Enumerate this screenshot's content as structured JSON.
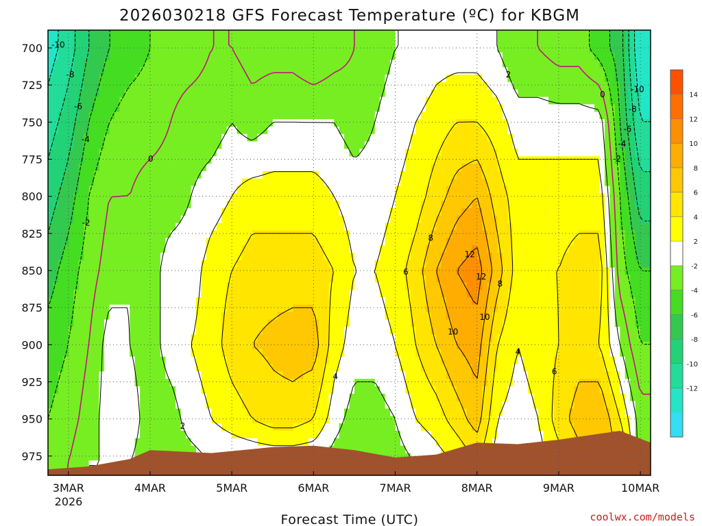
{
  "chart_data": {
    "type": "heatmap",
    "title": "2026030218 GFS Forecast Temperature (ºC) for KBGM",
    "xlabel": "Forecast Time (UTC)",
    "ylabel": "",
    "credit": "coolwx.com/models",
    "x_tick_labels": [
      "3MAR",
      "4MAR",
      "5MAR",
      "6MAR",
      "7MAR",
      "8MAR",
      "9MAR",
      "10MAR"
    ],
    "x_year_label": "2026",
    "x_tick_hours": [
      6,
      30,
      54,
      78,
      102,
      126,
      150,
      174
    ],
    "x_range_hours": [
      0,
      177
    ],
    "y_tick_labels": [
      "700",
      "725",
      "750",
      "775",
      "800",
      "825",
      "850",
      "875",
      "900",
      "925",
      "950",
      "975"
    ],
    "y_levels": [
      700,
      725,
      750,
      775,
      800,
      825,
      850,
      875,
      900,
      925,
      950,
      975
    ],
    "y_range": [
      688,
      988
    ],
    "grid": true,
    "colorbar": {
      "labels": [
        "14",
        "12",
        "10",
        "8",
        "6",
        "4",
        "2",
        "-2",
        "-4",
        "-6",
        "-8",
        "-10",
        "-12"
      ],
      "bounds": [
        -14,
        -12,
        -10,
        -8,
        -6,
        -4,
        -2,
        2,
        4,
        6,
        8,
        10,
        12,
        14,
        16
      ],
      "colors": [
        "#33ddf2",
        "#22e6c6",
        "#22dd99",
        "#22d277",
        "#33c94f",
        "#44dd22",
        "#77ee22",
        "#ffffff",
        "#ffff00",
        "#ffe500",
        "#ffc800",
        "#ffad00",
        "#ff8e00",
        "#ff6f00",
        "#ff5000"
      ]
    },
    "hours": [
      0,
      6,
      12,
      18,
      24,
      30,
      36,
      42,
      48,
      54,
      60,
      66,
      72,
      78,
      84,
      90,
      96,
      102,
      108,
      114,
      120,
      126,
      132,
      138,
      144,
      150,
      156,
      162,
      168,
      174
    ],
    "temp_levels": [
      700,
      750,
      800,
      850,
      900,
      950,
      980
    ],
    "temperatures": [
      [
        -11,
        -9,
        -7,
        -5,
        -3,
        -2,
        -1
      ],
      [
        -9,
        -7,
        -5,
        -3,
        -2,
        -1,
        0
      ],
      [
        -6,
        -4,
        -2,
        -1,
        0,
        1,
        2
      ],
      [
        -4,
        -2,
        0,
        1,
        3,
        3,
        2
      ],
      [
        -3,
        -1,
        0,
        2,
        2,
        3,
        2
      ],
      [
        -2,
        -1,
        1,
        1,
        1,
        1,
        1
      ],
      [
        -1,
        0,
        1,
        3,
        3,
        1,
        1
      ],
      [
        -1,
        1,
        2,
        3,
        4,
        3,
        1
      ],
      [
        0,
        1,
        3,
        5,
        5,
        4,
        2
      ],
      [
        0,
        2,
        4,
        6,
        7,
        5,
        2
      ],
      [
        -1,
        1,
        5,
        7,
        8,
        6,
        2
      ],
      [
        -1,
        2,
        5,
        7,
        8.5,
        7,
        2
      ],
      [
        -1,
        2,
        5,
        7,
        9,
        7,
        2
      ],
      [
        -2,
        2,
        5,
        7,
        9,
        6,
        2
      ],
      [
        -1,
        2,
        4,
        6,
        5,
        3,
        1
      ],
      [
        0,
        1,
        3,
        4,
        3,
        1,
        0
      ],
      [
        1,
        2,
        3,
        4,
        3,
        1,
        0
      ],
      [
        2,
        3,
        4,
        5,
        4,
        2,
        1
      ],
      [
        2,
        4,
        5,
        7,
        6,
        4,
        2
      ],
      [
        3,
        5,
        7,
        10,
        8,
        5,
        3
      ],
      [
        3,
        6,
        9,
        12,
        10,
        7,
        4
      ],
      [
        3,
        6,
        10,
        13,
        11,
        9,
        6
      ],
      [
        2,
        5,
        7,
        9,
        6,
        4,
        3
      ],
      [
        0,
        3,
        5,
        5,
        4,
        3,
        2
      ],
      [
        0,
        3,
        5,
        6,
        5,
        4,
        3
      ],
      [
        -1,
        3,
        5,
        6,
        6,
        7,
        5
      ],
      [
        -1,
        3,
        5,
        7,
        7,
        9,
        7
      ],
      [
        -3,
        3,
        5,
        7,
        6,
        10,
        9
      ],
      [
        -5,
        -4,
        -2,
        -1,
        2,
        6,
        9
      ],
      [
        -12,
        -10,
        -7,
        -4,
        -2,
        1,
        1
      ]
    ]
  }
}
